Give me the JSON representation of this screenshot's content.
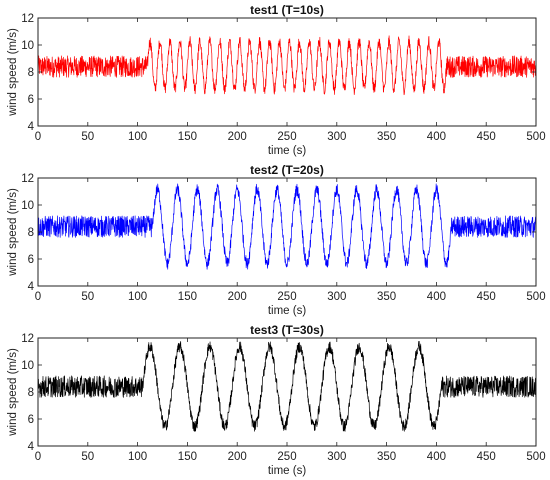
{
  "chart_data": [
    {
      "type": "line",
      "title": "test1 (T=10s)",
      "xlabel": "time (s)",
      "ylabel": "wind speed (m/s)",
      "xlim": [
        0,
        500
      ],
      "ylim": [
        4,
        12
      ],
      "xticks": [
        0,
        50,
        100,
        150,
        200,
        250,
        300,
        350,
        400,
        450,
        500
      ],
      "yticks": [
        4,
        6,
        8,
        10,
        12
      ],
      "grid": false,
      "series_color": "#ff0000",
      "signal": {
        "base_mean": 8.4,
        "base_noise_amplitude": 0.8,
        "oscillation_start": 110,
        "oscillation_end": 410,
        "oscillation_period": 10,
        "oscillation_min": 6.3,
        "oscillation_max": 10.7
      }
    },
    {
      "type": "line",
      "title": "test2 (T=20s)",
      "xlabel": "time (s)",
      "ylabel": "wind speed (m/s)",
      "xlim": [
        0,
        500
      ],
      "ylim": [
        4,
        12
      ],
      "xticks": [
        0,
        50,
        100,
        150,
        200,
        250,
        300,
        350,
        400,
        450,
        500
      ],
      "yticks": [
        4,
        6,
        8,
        10,
        12
      ],
      "grid": false,
      "series_color": "#0000ff",
      "signal": {
        "base_mean": 8.4,
        "base_noise_amplitude": 0.8,
        "oscillation_start": 115,
        "oscillation_end": 415,
        "oscillation_period": 20,
        "oscillation_min": 5.2,
        "oscillation_max": 11.6
      }
    },
    {
      "type": "line",
      "title": "test3 (T=30s)",
      "xlabel": "time (s)",
      "ylabel": "wind speed (m/s)",
      "xlim": [
        0,
        500
      ],
      "ylim": [
        4,
        12
      ],
      "xticks": [
        0,
        50,
        100,
        150,
        200,
        250,
        300,
        350,
        400,
        450,
        500
      ],
      "yticks": [
        4,
        6,
        8,
        10,
        12
      ],
      "grid": false,
      "series_color": "#000000",
      "signal": {
        "base_mean": 8.4,
        "base_noise_amplitude": 0.8,
        "oscillation_start": 105,
        "oscillation_end": 405,
        "oscillation_period": 30,
        "oscillation_min": 5.0,
        "oscillation_max": 11.8
      }
    }
  ]
}
